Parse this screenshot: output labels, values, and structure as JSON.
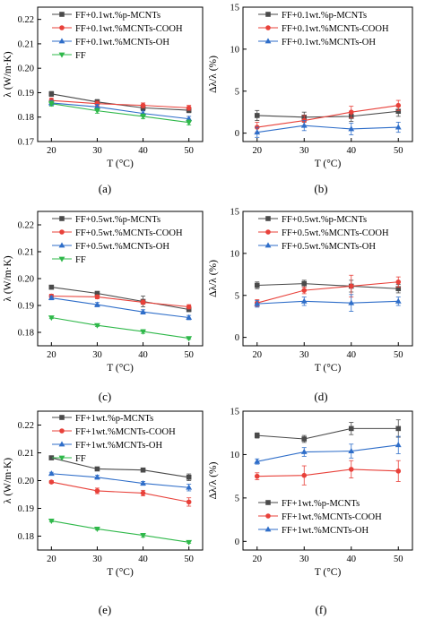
{
  "chart_data": [
    {
      "type": "line",
      "panel_label": "(a)",
      "xlabel": "T (°C)",
      "ylabel": "λ (W/m·K)",
      "x": [
        20,
        30,
        40,
        50
      ],
      "xlim": [
        17,
        53
      ],
      "ylim": [
        0.17,
        0.225
      ],
      "yticks": [
        "0.17",
        "0.18",
        "0.19",
        "0.20",
        "0.21",
        "0.22"
      ],
      "xticks": [
        "20",
        "30",
        "40",
        "50"
      ],
      "legend_position": "top-right",
      "series": [
        {
          "name": "FF+0.1wt.%p-MCNTs",
          "color": "#4a4a4a",
          "marker": "square",
          "values": [
            0.1895,
            0.1862,
            0.1838,
            0.1828
          ],
          "errors": [
            0.001,
            0.001,
            0.001,
            0.001
          ]
        },
        {
          "name": "FF+0.1wt.%MCNTs-COOH",
          "color": "#e8413a",
          "marker": "circle",
          "values": [
            0.1868,
            0.1855,
            0.1848,
            0.1838
          ],
          "errors": [
            0.001,
            0.001,
            0.001,
            0.001
          ]
        },
        {
          "name": "FF+0.1wt.%MCNTs-OH",
          "color": "#2f6ec9",
          "marker": "triangle-up",
          "values": [
            0.1858,
            0.1842,
            0.1815,
            0.1793
          ],
          "errors": [
            0.001,
            0.001,
            0.001,
            0.001
          ]
        },
        {
          "name": "FF",
          "color": "#2fb84a",
          "marker": "triangle-down",
          "values": [
            0.1855,
            0.1826,
            0.1803,
            0.1778
          ],
          "errors": [
            0.001,
            0.001,
            0.001,
            0.001
          ]
        }
      ]
    },
    {
      "type": "line",
      "panel_label": "(b)",
      "xlabel": "T (°C)",
      "ylabel": "Δλ/λ (%)",
      "x": [
        20,
        30,
        40,
        50
      ],
      "xlim": [
        17,
        53
      ],
      "ylim": [
        -1,
        15
      ],
      "yticks": [
        "0",
        "5",
        "10",
        "15"
      ],
      "xticks": [
        "20",
        "30",
        "40",
        "50"
      ],
      "legend_position": "top-left",
      "series": [
        {
          "name": "FF+0.1wt.%p-MCNTs",
          "color": "#4a4a4a",
          "marker": "square",
          "values": [
            2.1,
            1.9,
            2.0,
            2.6
          ],
          "errors": [
            0.6,
            0.6,
            0.6,
            0.6
          ]
        },
        {
          "name": "FF+0.1wt.%MCNTs-COOH",
          "color": "#e8413a",
          "marker": "circle",
          "values": [
            0.7,
            1.5,
            2.5,
            3.3
          ],
          "errors": [
            0.6,
            0.6,
            0.7,
            0.6
          ]
        },
        {
          "name": "FF+0.1wt.%MCNTs-OH",
          "color": "#2f6ec9",
          "marker": "triangle-up",
          "values": [
            0.1,
            0.9,
            0.5,
            0.7
          ],
          "errors": [
            0.6,
            0.6,
            0.7,
            0.6
          ]
        }
      ]
    },
    {
      "type": "line",
      "panel_label": "(c)",
      "xlabel": "T (°C)",
      "ylabel": "λ (W/m·K)",
      "x": [
        20,
        30,
        40,
        50
      ],
      "xlim": [
        17,
        53
      ],
      "ylim": [
        0.175,
        0.225
      ],
      "yticks": [
        "0.18",
        "0.19",
        "0.20",
        "0.21",
        "0.22"
      ],
      "xticks": [
        "20",
        "30",
        "40",
        "50"
      ],
      "legend_position": "top-right",
      "series": [
        {
          "name": "FF+0.5wt.%p-MCNTs",
          "color": "#4a4a4a",
          "marker": "square",
          "values": [
            0.1968,
            0.1945,
            0.1915,
            0.1885
          ],
          "errors": [
            0.0007,
            0.0007,
            0.002,
            0.0008
          ]
        },
        {
          "name": "FF+0.5wt.%MCNTs-COOH",
          "color": "#e8413a",
          "marker": "circle",
          "values": [
            0.1935,
            0.1932,
            0.1912,
            0.1895
          ],
          "errors": [
            0.0007,
            0.0007,
            0.0008,
            0.0008
          ]
        },
        {
          "name": "FF+0.5wt.%MCNTs-OH",
          "color": "#2f6ec9",
          "marker": "triangle-up",
          "values": [
            0.1928,
            0.1903,
            0.1876,
            0.1855
          ],
          "errors": [
            0.0007,
            0.0008,
            0.0008,
            0.0008
          ]
        },
        {
          "name": "FF",
          "color": "#2fb84a",
          "marker": "triangle-down",
          "values": [
            0.1855,
            0.1826,
            0.1803,
            0.1778
          ],
          "errors": [
            0.0004,
            0.0004,
            0.0007,
            0.0004
          ]
        }
      ]
    },
    {
      "type": "line",
      "panel_label": "(d)",
      "xlabel": "T (°C)",
      "ylabel": "Δλ/λ (%)",
      "x": [
        20,
        30,
        40,
        50
      ],
      "xlim": [
        17,
        53
      ],
      "ylim": [
        -1,
        15
      ],
      "yticks": [
        "0",
        "5",
        "10",
        "15"
      ],
      "xticks": [
        "20",
        "30",
        "40",
        "50"
      ],
      "legend_position": "top-left",
      "series": [
        {
          "name": "FF+0.5wt.%p-MCNTs",
          "color": "#4a4a4a",
          "marker": "square",
          "values": [
            6.2,
            6.4,
            6.1,
            5.8
          ],
          "errors": [
            0.4,
            0.4,
            0.7,
            0.5
          ]
        },
        {
          "name": "FF+0.5wt.%MCNTs-COOH",
          "color": "#e8413a",
          "marker": "circle",
          "values": [
            4.1,
            5.6,
            6.1,
            6.6
          ],
          "errors": [
            0.4,
            0.4,
            1.3,
            0.6
          ]
        },
        {
          "name": "FF+0.5wt.%MCNTs-OH",
          "color": "#2f6ec9",
          "marker": "triangle-up",
          "values": [
            4.0,
            4.3,
            4.1,
            4.3
          ],
          "errors": [
            0.4,
            0.5,
            1.0,
            0.5
          ]
        }
      ]
    },
    {
      "type": "line",
      "panel_label": "(e)",
      "xlabel": "T (°C)",
      "ylabel": "λ (W/m·K)",
      "x": [
        20,
        30,
        40,
        50
      ],
      "xlim": [
        17,
        53
      ],
      "ylim": [
        0.175,
        0.225
      ],
      "yticks": [
        "0.18",
        "0.19",
        "0.20",
        "0.21",
        "0.22"
      ],
      "xticks": [
        "20",
        "30",
        "40",
        "50"
      ],
      "legend_position": "top-right",
      "series": [
        {
          "name": "FF+1wt.%p-MCNTs",
          "color": "#4a4a4a",
          "marker": "square",
          "values": [
            0.2082,
            0.2042,
            0.2038,
            0.2012
          ],
          "errors": [
            0.0005,
            0.0005,
            0.0005,
            0.0012
          ]
        },
        {
          "name": "FF+1wt.%MCNTs-COOH",
          "color": "#e8413a",
          "marker": "circle",
          "values": [
            0.1995,
            0.1963,
            0.1955,
            0.1923
          ],
          "errors": [
            0.0005,
            0.001,
            0.001,
            0.0015
          ]
        },
        {
          "name": "FF+1wt.%MCNTs-OH",
          "color": "#2f6ec9",
          "marker": "triangle-up",
          "values": [
            0.2025,
            0.2012,
            0.199,
            0.1975
          ],
          "errors": [
            0.0005,
            0.0007,
            0.0007,
            0.0012
          ]
        },
        {
          "name": "FF",
          "color": "#2fb84a",
          "marker": "triangle-down",
          "values": [
            0.1855,
            0.1826,
            0.1803,
            0.1778
          ],
          "errors": [
            0.0004,
            0.0004,
            0.0007,
            0.0004
          ]
        }
      ]
    },
    {
      "type": "line",
      "panel_label": "(f)",
      "xlabel": "T (°C)",
      "ylabel": "Δλ/λ (%)",
      "x": [
        20,
        30,
        40,
        50
      ],
      "xlim": [
        17,
        53
      ],
      "ylim": [
        -1,
        15
      ],
      "yticks": [
        "0",
        "5",
        "10",
        "15"
      ],
      "xticks": [
        "20",
        "30",
        "40",
        "50"
      ],
      "legend_position": "bottom-right",
      "series": [
        {
          "name": "FF+1wt.%p-MCNTs",
          "color": "#4a4a4a",
          "marker": "square",
          "values": [
            12.2,
            11.8,
            13.0,
            13.0
          ],
          "errors": [
            0.3,
            0.4,
            0.7,
            1.0
          ]
        },
        {
          "name": "FF+1wt.%MCNTs-COOH",
          "color": "#e8413a",
          "marker": "circle",
          "values": [
            7.5,
            7.6,
            8.3,
            8.1
          ],
          "errors": [
            0.4,
            1.1,
            1.0,
            1.2
          ]
        },
        {
          "name": "FF+1wt.%MCNTs-OH",
          "color": "#2f6ec9",
          "marker": "triangle-up",
          "values": [
            9.2,
            10.3,
            10.4,
            11.1
          ],
          "errors": [
            0.3,
            0.5,
            0.8,
            1.0
          ]
        }
      ]
    }
  ]
}
